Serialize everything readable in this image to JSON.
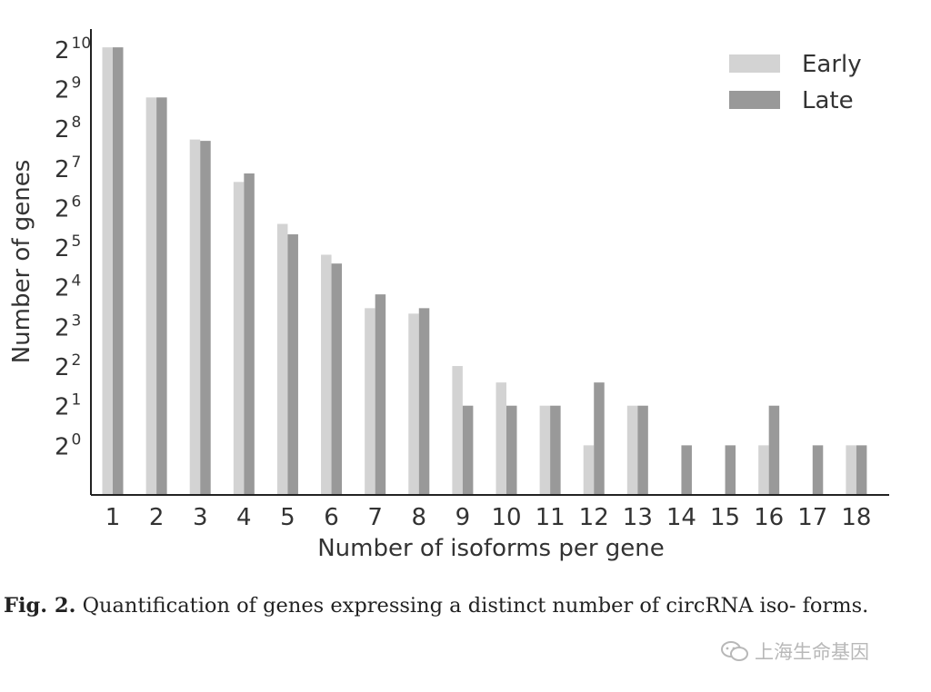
{
  "chart_data": {
    "type": "bar",
    "categories": [
      "1",
      "2",
      "3",
      "4",
      "5",
      "6",
      "7",
      "8",
      "9",
      "10",
      "11",
      "12",
      "13",
      "14",
      "15",
      "16",
      "17",
      "18"
    ],
    "series": [
      {
        "name": "Early",
        "values": [
          1052,
          438,
          210,
          100,
          48,
          28,
          11,
          10,
          4,
          3,
          2,
          1,
          2,
          0,
          0,
          1,
          0,
          1
        ],
        "color": "#d3d3d3"
      },
      {
        "name": "Late",
        "values": [
          1052,
          438,
          205,
          116,
          40,
          24,
          14,
          11,
          2,
          2,
          2,
          3,
          2,
          1,
          1,
          2,
          1,
          1
        ],
        "color": "#999999"
      }
    ],
    "xlabel": "Number of isoforms per gene",
    "ylabel": "Number of genes",
    "yscale": "log2",
    "ylim": [
      0.42,
      1448
    ],
    "yticks": [
      {
        "base": "2",
        "exp": "0",
        "value": 1
      },
      {
        "base": "2",
        "exp": "1",
        "value": 2
      },
      {
        "base": "2",
        "exp": "2",
        "value": 4
      },
      {
        "base": "2",
        "exp": "3",
        "value": 8
      },
      {
        "base": "2",
        "exp": "4",
        "value": 16
      },
      {
        "base": "2",
        "exp": "5",
        "value": 32
      },
      {
        "base": "2",
        "exp": "6",
        "value": 64
      },
      {
        "base": "2",
        "exp": "7",
        "value": 128
      },
      {
        "base": "2",
        "exp": "8",
        "value": 256
      },
      {
        "base": "2",
        "exp": "9",
        "value": 512
      },
      {
        "base": "2",
        "exp": "10",
        "value": 1024
      }
    ],
    "legend_position": "top-right",
    "grid": false
  },
  "caption": {
    "label": "Fig. 2.",
    "text": "Quantification of genes expressing a distinct number of circRNA iso- forms."
  },
  "watermark": {
    "text": "上海生命基因",
    "icon": "wechat-icon"
  }
}
